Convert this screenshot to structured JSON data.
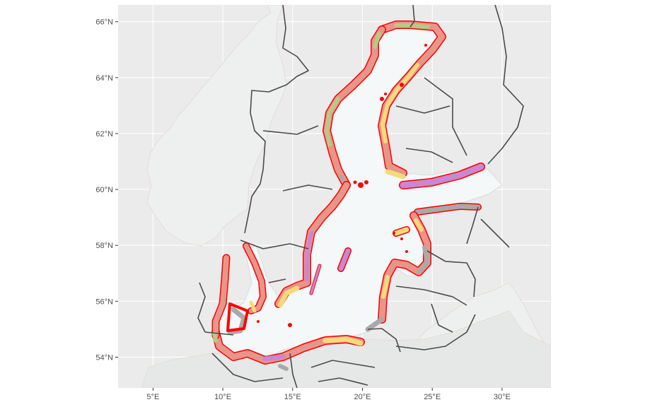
{
  "map": {
    "lon_range": [
      2.5,
      33.5
    ],
    "lat_range": [
      52.9,
      66.6
    ],
    "x_ticks": [
      {
        "lon": 5,
        "label": "5°E"
      },
      {
        "lon": 10,
        "label": "10°E"
      },
      {
        "lon": 15,
        "label": "15°E"
      },
      {
        "lon": 20,
        "label": "20°E"
      },
      {
        "lon": 25,
        "label": "25°E"
      },
      {
        "lon": 30,
        "label": "30°E"
      }
    ],
    "y_ticks": [
      {
        "lat": 54,
        "label": "54°N"
      },
      {
        "lat": 56,
        "label": "56°N"
      },
      {
        "lat": 58,
        "label": "58°N"
      },
      {
        "lat": 60,
        "label": "60°N"
      },
      {
        "lat": 62,
        "label": "62°N"
      },
      {
        "lat": 64,
        "label": "64°N"
      },
      {
        "lat": 66,
        "label": "66°N"
      }
    ],
    "grid": true,
    "colors": {
      "panel": "#EBEBEB",
      "land": "#EEF0F0",
      "sea": "#F4F8F9",
      "border": "#4A4A4A",
      "coast_band_outline": "#FF0000",
      "band_salmon": "#E8958A",
      "band_green": "#B5CB85",
      "band_yellow": "#F2DB7A",
      "band_purple": "#C988CF",
      "band_grey": "#A9A9A9"
    }
  }
}
